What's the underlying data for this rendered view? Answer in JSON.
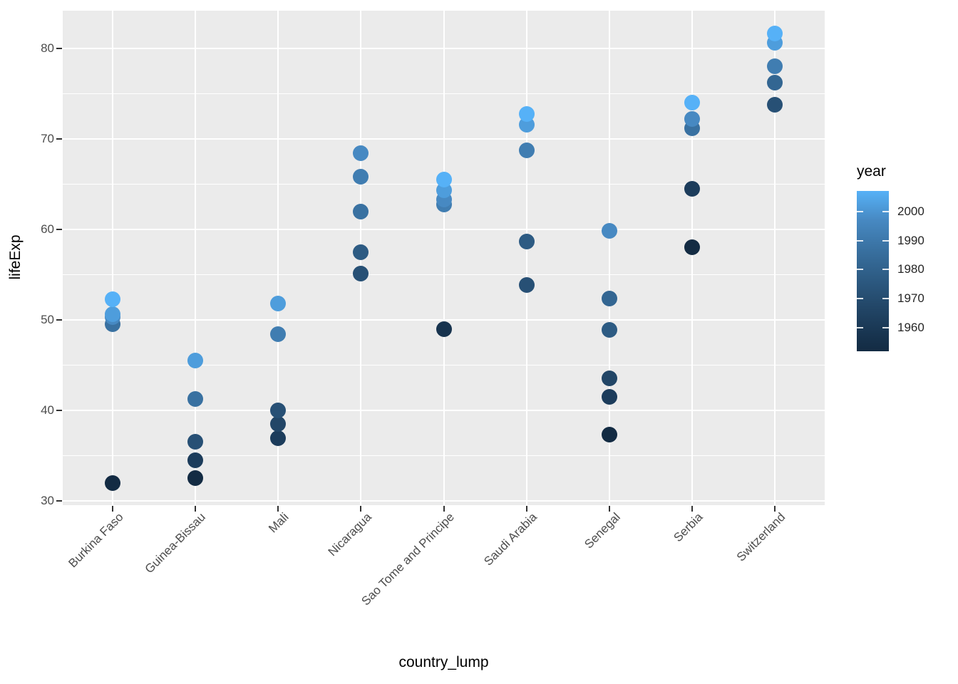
{
  "figure": {
    "background": "#FFFFFF"
  },
  "chart_data": {
    "type": "scatter",
    "title": "",
    "xlabel": "country_lump",
    "ylabel": "lifeExp",
    "legend_position": "right",
    "grid": true,
    "panel_background": "#EBEBEB",
    "gridline_color": "#FFFFFF",
    "tick_label_color": "#4D4D4D",
    "tick_mark_color": "#333333",
    "categories": [
      "Burkina Faso",
      "Guinea-Bissau",
      "Mali",
      "Nicaragua",
      "Sao Tome and Principe",
      "Saudi Arabia",
      "Senegal",
      "Serbia",
      "Switzerland"
    ],
    "y_ticks": [
      30,
      40,
      50,
      60,
      70,
      80
    ],
    "y_minor_ticks": [
      35,
      45,
      55,
      65,
      75
    ],
    "ylim": [
      29.5,
      84.2
    ],
    "x_expand_units": [
      0.4,
      9.6
    ],
    "points": [
      {
        "country": "Burkina Faso",
        "year": 1952,
        "lifeExp": 31.975
      },
      {
        "country": "Burkina Faso",
        "year": 1987,
        "lifeExp": 49.557
      },
      {
        "country": "Burkina Faso",
        "year": 1997,
        "lifeExp": 50.324
      },
      {
        "country": "Burkina Faso",
        "year": 2002,
        "lifeExp": 50.65
      },
      {
        "country": "Burkina Faso",
        "year": 2007,
        "lifeExp": 52.295
      },
      {
        "country": "Guinea-Bissau",
        "year": 1952,
        "lifeExp": 32.5
      },
      {
        "country": "Guinea-Bissau",
        "year": 1962,
        "lifeExp": 34.488
      },
      {
        "country": "Guinea-Bissau",
        "year": 1972,
        "lifeExp": 36.486
      },
      {
        "country": "Guinea-Bissau",
        "year": 1987,
        "lifeExp": 41.245
      },
      {
        "country": "Guinea-Bissau",
        "year": 2002,
        "lifeExp": 45.504
      },
      {
        "country": "Mali",
        "year": 1962,
        "lifeExp": 36.936
      },
      {
        "country": "Mali",
        "year": 1967,
        "lifeExp": 38.487
      },
      {
        "country": "Mali",
        "year": 1972,
        "lifeExp": 39.977
      },
      {
        "country": "Mali",
        "year": 1992,
        "lifeExp": 48.388
      },
      {
        "country": "Mali",
        "year": 2002,
        "lifeExp": 51.818
      },
      {
        "country": "Nicaragua",
        "year": 1972,
        "lifeExp": 55.151
      },
      {
        "country": "Nicaragua",
        "year": 1977,
        "lifeExp": 57.47
      },
      {
        "country": "Nicaragua",
        "year": 1987,
        "lifeExp": 62.008
      },
      {
        "country": "Nicaragua",
        "year": 1992,
        "lifeExp": 65.843
      },
      {
        "country": "Nicaragua",
        "year": 1997,
        "lifeExp": 68.426
      },
      {
        "country": "Sao Tome and Principe",
        "year": 1957,
        "lifeExp": 48.945
      },
      {
        "country": "Sao Tome and Principe",
        "year": 1992,
        "lifeExp": 62.742
      },
      {
        "country": "Sao Tome and Principe",
        "year": 1997,
        "lifeExp": 63.306
      },
      {
        "country": "Sao Tome and Principe",
        "year": 2002,
        "lifeExp": 64.337
      },
      {
        "country": "Sao Tome and Principe",
        "year": 2007,
        "lifeExp": 65.528
      },
      {
        "country": "Saudi Arabia",
        "year": 1972,
        "lifeExp": 53.886
      },
      {
        "country": "Saudi Arabia",
        "year": 1977,
        "lifeExp": 58.69
      },
      {
        "country": "Saudi Arabia",
        "year": 1992,
        "lifeExp": 68.768
      },
      {
        "country": "Saudi Arabia",
        "year": 2002,
        "lifeExp": 71.626
      },
      {
        "country": "Saudi Arabia",
        "year": 2007,
        "lifeExp": 72.777
      },
      {
        "country": "Senegal",
        "year": 1952,
        "lifeExp": 37.278
      },
      {
        "country": "Senegal",
        "year": 1962,
        "lifeExp": 41.454
      },
      {
        "country": "Senegal",
        "year": 1967,
        "lifeExp": 43.563
      },
      {
        "country": "Senegal",
        "year": 1977,
        "lifeExp": 48.879
      },
      {
        "country": "Senegal",
        "year": 1982,
        "lifeExp": 52.379
      },
      {
        "country": "Senegal",
        "year": 1997,
        "lifeExp": 59.847
      },
      {
        "country": "Serbia",
        "year": 1952,
        "lifeExp": 57.996
      },
      {
        "country": "Serbia",
        "year": 1962,
        "lifeExp": 64.531
      },
      {
        "country": "Serbia",
        "year": 1987,
        "lifeExp": 71.218
      },
      {
        "country": "Serbia",
        "year": 1997,
        "lifeExp": 72.232
      },
      {
        "country": "Serbia",
        "year": 2007,
        "lifeExp": 74.002
      },
      {
        "country": "Switzerland",
        "year": 1972,
        "lifeExp": 73.78
      },
      {
        "country": "Switzerland",
        "year": 1982,
        "lifeExp": 76.21
      },
      {
        "country": "Switzerland",
        "year": 1992,
        "lifeExp": 78.03
      },
      {
        "country": "Switzerland",
        "year": 2002,
        "lifeExp": 80.62
      },
      {
        "country": "Switzerland",
        "year": 2007,
        "lifeExp": 81.701
      }
    ],
    "year_colors": {
      "1952": "#132B43",
      "1957": "#17334E",
      "1962": "#1C3C5B",
      "1967": "#224667",
      "1972": "#275075",
      "1977": "#2D5B83",
      "1982": "#336692",
      "1987": "#3971A1",
      "1992": "#407DB1",
      "1997": "#4789C2",
      "2002": "#4E9DDC",
      "2007": "#56B1F7"
    },
    "legend": {
      "title": "year",
      "year_min": 1952,
      "year_max": 2007,
      "color_low": "#132B43",
      "color_high": "#56B1F7",
      "tick_years": [
        2000,
        1990,
        1980,
        1970,
        1960
      ],
      "tick_labels": [
        "2000",
        "1990",
        "1980",
        "1970",
        "1960"
      ],
      "gradient_stops": [
        {
          "frac": 0.0,
          "color": "#56B1F7"
        },
        {
          "frac": 0.1818,
          "color": "#4789C2"
        },
        {
          "frac": 0.3636,
          "color": "#3971A1"
        },
        {
          "frac": 0.5455,
          "color": "#2D5B83"
        },
        {
          "frac": 0.7273,
          "color": "#224667"
        },
        {
          "frac": 0.9091,
          "color": "#17334E"
        },
        {
          "frac": 1.0,
          "color": "#132B43"
        }
      ]
    }
  }
}
